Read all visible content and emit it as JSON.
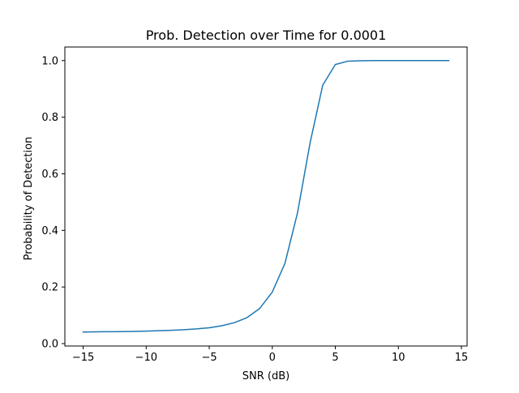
{
  "chart_data": {
    "type": "line",
    "title": "Prob. Detection over Time for 0.0001",
    "xlabel": "SNR (dB)",
    "ylabel": "Probability of Detection",
    "xlim": [
      -16.45,
      15.45
    ],
    "ylim": [
      -0.0085,
      1.048
    ],
    "xticks": [
      -15,
      -10,
      -5,
      0,
      5,
      10,
      15
    ],
    "xtick_labels": [
      "−15",
      "−10",
      "−5",
      "0",
      "5",
      "10",
      "15"
    ],
    "yticks": [
      0.0,
      0.2,
      0.4,
      0.6,
      0.8,
      1.0
    ],
    "ytick_labels": [
      "0.0",
      "0.2",
      "0.4",
      "0.6",
      "0.8",
      "1.0"
    ],
    "grid": false,
    "legend": "none",
    "series": [
      {
        "color": "#1f77b4",
        "x": [
          -15,
          -14,
          -13,
          -12,
          -11,
          -10,
          -9,
          -8,
          -7,
          -6,
          -5,
          -4,
          -3,
          -2,
          -1,
          0,
          1,
          2,
          3,
          4,
          5,
          6,
          7,
          8,
          9,
          10,
          11,
          12,
          13,
          14
        ],
        "y": [
          0.041,
          0.0415,
          0.042,
          0.0425,
          0.043,
          0.044,
          0.0455,
          0.047,
          0.049,
          0.052,
          0.056,
          0.063,
          0.074,
          0.092,
          0.124,
          0.182,
          0.283,
          0.462,
          0.71,
          0.913,
          0.986,
          0.998,
          0.9995,
          1.0,
          1.0,
          1.0,
          1.0,
          1.0,
          1.0,
          1.0
        ]
      }
    ]
  }
}
